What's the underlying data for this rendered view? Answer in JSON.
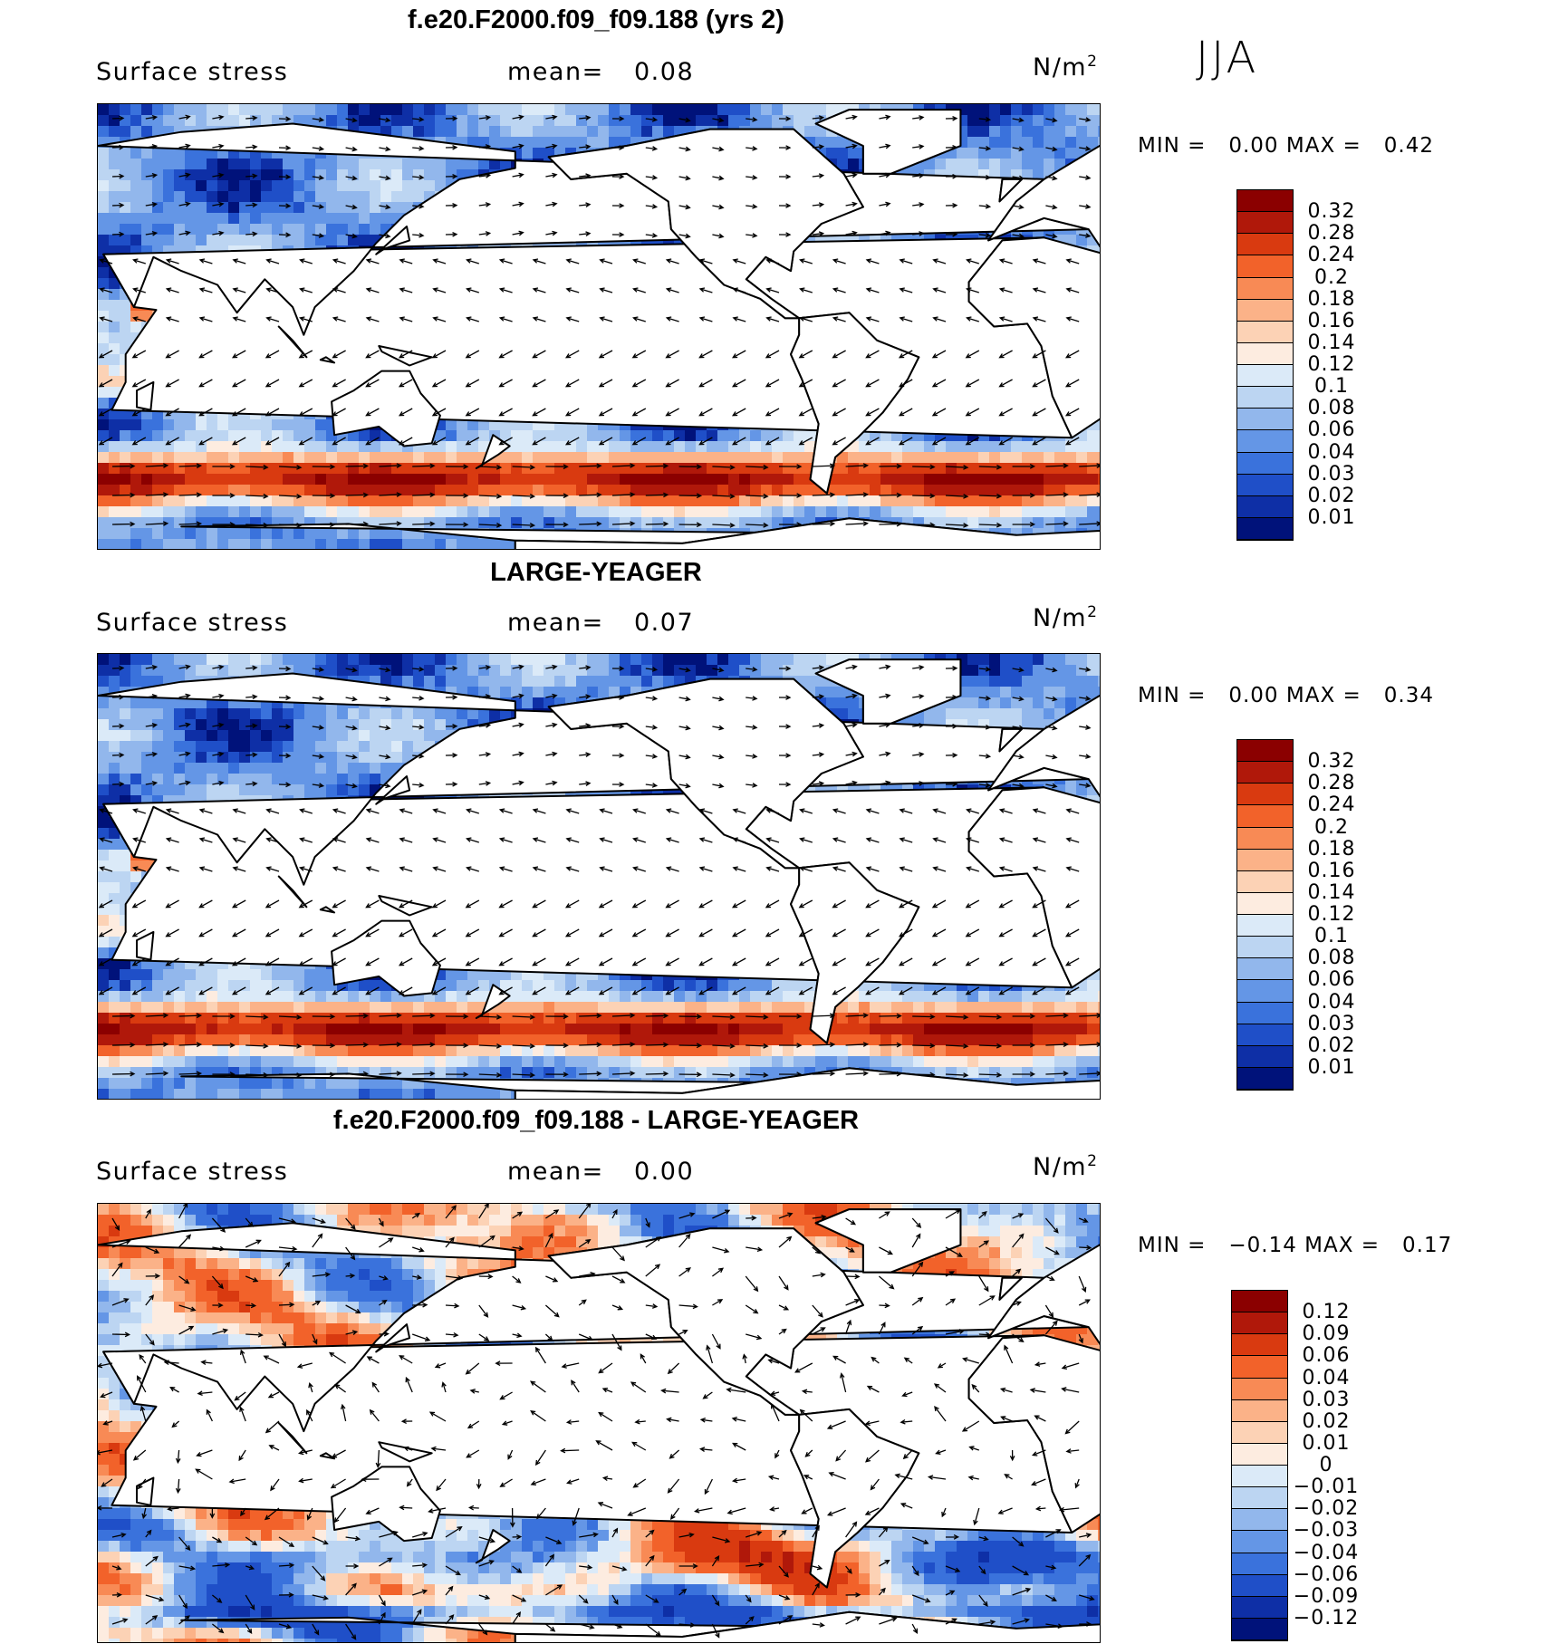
{
  "season": "JJA",
  "panels": [
    {
      "title": "f.e20.F2000.f09_f09.188 (yrs 2)",
      "variable": "Surface stress",
      "mean_label": "mean=",
      "mean_value": "0.08",
      "units_base": "N/m",
      "units_exp": "2",
      "min_label": "MIN =",
      "min_value": "0.00",
      "max_label": "MAX =",
      "max_value": "0.42",
      "levels": [
        "0.32",
        "0.28",
        "0.24",
        "0.2",
        "0.18",
        "0.16",
        "0.14",
        "0.12",
        "0.1",
        "0.08",
        "0.06",
        "0.04",
        "0.03",
        "0.02",
        "0.01"
      ],
      "colors": [
        "#8b0000",
        "#b0180a",
        "#d93a10",
        "#f2622a",
        "#f88a55",
        "#fbb288",
        "#fcd2b5",
        "#fdece0",
        "#dbeaf8",
        "#bcd5f2",
        "#92b7ec",
        "#6496e6",
        "#3a72dc",
        "#1f4fc8",
        "#0e2fa6",
        "#00127a"
      ]
    },
    {
      "title": "LARGE-YEAGER",
      "variable": "Surface stress",
      "mean_label": "mean=",
      "mean_value": "0.07",
      "units_base": "N/m",
      "units_exp": "2",
      "min_label": "MIN =",
      "min_value": "0.00",
      "max_label": "MAX =",
      "max_value": "0.34",
      "levels": [
        "0.32",
        "0.28",
        "0.24",
        "0.2",
        "0.18",
        "0.16",
        "0.14",
        "0.12",
        "0.1",
        "0.08",
        "0.06",
        "0.04",
        "0.03",
        "0.02",
        "0.01"
      ],
      "colors": [
        "#8b0000",
        "#b0180a",
        "#d93a10",
        "#f2622a",
        "#f88a55",
        "#fbb288",
        "#fcd2b5",
        "#fdece0",
        "#dbeaf8",
        "#bcd5f2",
        "#92b7ec",
        "#6496e6",
        "#3a72dc",
        "#1f4fc8",
        "#0e2fa6",
        "#00127a"
      ]
    },
    {
      "title": "f.e20.F2000.f09_f09.188 - LARGE-YEAGER",
      "variable": "Surface stress",
      "mean_label": "mean=",
      "mean_value": "0.00",
      "units_base": "N/m",
      "units_exp": "2",
      "min_label": "MIN =",
      "min_value": "−0.14",
      "max_label": "MAX =",
      "max_value": "0.17",
      "levels": [
        "0.12",
        "0.09",
        "0.06",
        "0.04",
        "0.03",
        "0.02",
        "0.01",
        "0",
        "−0.01",
        "−0.02",
        "−0.03",
        "−0.04",
        "−0.06",
        "−0.09",
        "−0.12"
      ],
      "colors": [
        "#8b0000",
        "#b0180a",
        "#d93a10",
        "#f2622a",
        "#f88a55",
        "#fbb288",
        "#fcd2b5",
        "#fdece0",
        "#dbeaf8",
        "#bcd5f2",
        "#92b7ec",
        "#6496e6",
        "#3a72dc",
        "#1f4fc8",
        "#0e2fa6",
        "#00127a"
      ]
    }
  ]
}
